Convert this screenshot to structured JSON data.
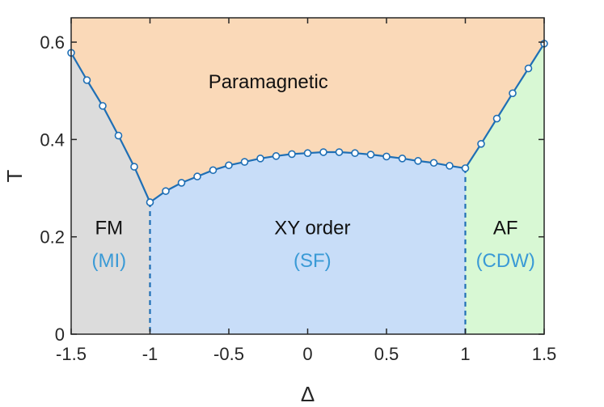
{
  "chart_data": {
    "type": "line",
    "title": "",
    "xlabel": "Δ",
    "ylabel": "T",
    "xlim": [
      -1.5,
      1.5
    ],
    "ylim": [
      0,
      0.65
    ],
    "x_ticks": [
      -1.5,
      -1,
      -0.5,
      0,
      0.5,
      1,
      1.5
    ],
    "x_tick_labels": [
      "-1.5",
      "-1",
      "-0.5",
      "0",
      "0.5",
      "1",
      "1.5"
    ],
    "y_ticks": [
      0,
      0.2,
      0.4,
      0.6
    ],
    "y_tick_labels": [
      "0",
      "0.2",
      "0.4",
      "0.6"
    ],
    "grid": false,
    "colors": {
      "line": "#1f6fb5",
      "marker_fill": "#ffffff",
      "paramagnetic": "#fad9b8",
      "fm": "#dcdcdc",
      "xy": "#c8ddf8",
      "af": "#d8f8d4",
      "sublabel": "#3a9ad6",
      "axis": "#262626"
    },
    "series": [
      {
        "x": [
          -1.5,
          -1.4,
          -1.3,
          -1.2,
          -1.1,
          -1.0,
          -0.9,
          -0.8,
          -0.7,
          -0.6,
          -0.5,
          -0.4,
          -0.3,
          -0.2,
          -0.1,
          0.0,
          0.1,
          0.2,
          0.3,
          0.4,
          0.5,
          0.6,
          0.7,
          0.8,
          0.9,
          1.0,
          1.1,
          1.2,
          1.3,
          1.4,
          1.5
        ],
        "y": [
          0.578,
          0.522,
          0.469,
          0.408,
          0.344,
          0.271,
          0.294,
          0.311,
          0.324,
          0.337,
          0.347,
          0.354,
          0.361,
          0.366,
          0.37,
          0.372,
          0.374,
          0.374,
          0.372,
          0.369,
          0.365,
          0.361,
          0.356,
          0.352,
          0.346,
          0.341,
          0.391,
          0.443,
          0.495,
          0.546,
          0.597
        ]
      }
    ],
    "phase_boundaries_dashed_x": [
      -1,
      1
    ],
    "regions": {
      "paramagnetic": {
        "label": "Paramagnetic"
      },
      "fm": {
        "label": "FM",
        "sublabel": "(MI)"
      },
      "xy": {
        "label": "XY order",
        "sublabel": "(SF)"
      },
      "af": {
        "label": "AF",
        "sublabel": "(CDW)"
      }
    }
  }
}
